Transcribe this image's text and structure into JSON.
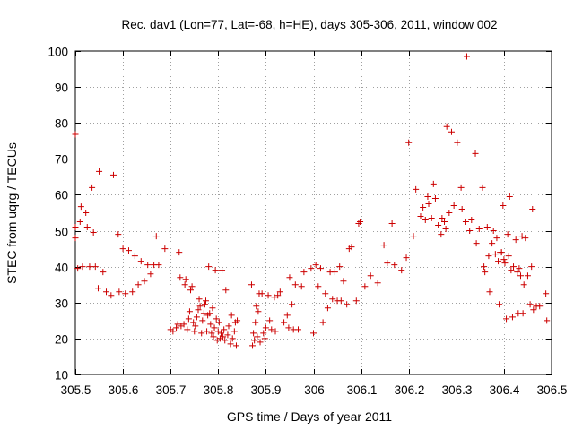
{
  "chart_data": {
    "type": "scatter",
    "title": "Rec. dav1 (Lon=77, Lat=-68, h=HE), days 305-306, 2011, window 002",
    "xlabel": "GPS time / Days of year 2011",
    "ylabel": "STEC from uqrg / TECUs",
    "xlim": [
      305.5,
      306.5
    ],
    "ylim": [
      10,
      100
    ],
    "xticks": [
      305.5,
      305.6,
      305.7,
      305.8,
      305.9,
      306.0,
      306.1,
      306.2,
      306.3,
      306.4,
      306.5
    ],
    "xtick_labels": [
      "305.5",
      "305.6",
      "305.7",
      "305.8",
      "305.9",
      "306",
      "306.1",
      "306.2",
      "306.3",
      "306.4",
      "306.5"
    ],
    "yticks": [
      10,
      20,
      30,
      40,
      50,
      60,
      70,
      80,
      90,
      100
    ],
    "ytick_labels": [
      "10",
      "20",
      "30",
      "40",
      "50",
      "60",
      "70",
      "80",
      "90",
      "100"
    ],
    "grid": true,
    "marker": "plus",
    "color": "#cc0000",
    "series": [
      {
        "name": "STEC",
        "points": [
          [
            305.5,
            76.8
          ],
          [
            305.5,
            51.0
          ],
          [
            305.5,
            48.0
          ],
          [
            305.505,
            39.5
          ],
          [
            305.51,
            52.5
          ],
          [
            305.512,
            56.7
          ],
          [
            305.515,
            40.0
          ],
          [
            305.522,
            55.0
          ],
          [
            305.525,
            51.0
          ],
          [
            305.53,
            40.0
          ],
          [
            305.535,
            62.0
          ],
          [
            305.538,
            49.5
          ],
          [
            305.542,
            40.0
          ],
          [
            305.548,
            34.0
          ],
          [
            305.55,
            66.5
          ],
          [
            305.558,
            38.5
          ],
          [
            305.565,
            33.0
          ],
          [
            305.575,
            32.0
          ],
          [
            305.58,
            65.5
          ],
          [
            305.59,
            49.0
          ],
          [
            305.592,
            33.0
          ],
          [
            305.6,
            45.0
          ],
          [
            305.605,
            32.5
          ],
          [
            305.612,
            44.5
          ],
          [
            305.62,
            33.0
          ],
          [
            305.625,
            43.0
          ],
          [
            305.632,
            35.0
          ],
          [
            305.638,
            41.5
          ],
          [
            305.645,
            36.0
          ],
          [
            305.652,
            40.5
          ],
          [
            305.658,
            38.0
          ],
          [
            305.665,
            40.5
          ],
          [
            305.67,
            48.5
          ],
          [
            305.675,
            40.5
          ],
          [
            305.688,
            45.0
          ],
          [
            305.7,
            22.5
          ],
          [
            305.705,
            22.0
          ],
          [
            305.712,
            23.0
          ],
          [
            305.715,
            24.0
          ],
          [
            305.718,
            44.0
          ],
          [
            305.72,
            37.0
          ],
          [
            305.722,
            23.5
          ],
          [
            305.728,
            24.0
          ],
          [
            305.73,
            35.0
          ],
          [
            305.732,
            36.5
          ],
          [
            305.735,
            22.5
          ],
          [
            305.738,
            25.5
          ],
          [
            305.74,
            27.5
          ],
          [
            305.742,
            33.5
          ],
          [
            305.745,
            34.5
          ],
          [
            305.748,
            24.5
          ],
          [
            305.75,
            22.0
          ],
          [
            305.752,
            23.5
          ],
          [
            305.755,
            26.0
          ],
          [
            305.758,
            28.0
          ],
          [
            305.76,
            31.0
          ],
          [
            305.762,
            29.0
          ],
          [
            305.765,
            21.5
          ],
          [
            305.767,
            25.0
          ],
          [
            305.77,
            27.0
          ],
          [
            305.772,
            29.5
          ],
          [
            305.774,
            30.5
          ],
          [
            305.776,
            22.0
          ],
          [
            305.778,
            26.5
          ],
          [
            305.78,
            40.0
          ],
          [
            305.782,
            27.0
          ],
          [
            305.784,
            24.0
          ],
          [
            305.786,
            21.5
          ],
          [
            305.788,
            28.5
          ],
          [
            305.79,
            20.5
          ],
          [
            305.792,
            23.0
          ],
          [
            305.794,
            39.0
          ],
          [
            305.796,
            25.5
          ],
          [
            305.798,
            19.5
          ],
          [
            305.8,
            22.0
          ],
          [
            305.802,
            24.5
          ],
          [
            305.804,
            20.0
          ],
          [
            305.806,
            21.5
          ],
          [
            305.808,
            39.0
          ],
          [
            305.81,
            20.5
          ],
          [
            305.812,
            22.5
          ],
          [
            305.814,
            19.5
          ],
          [
            305.816,
            33.5
          ],
          [
            305.82,
            21.0
          ],
          [
            305.822,
            23.5
          ],
          [
            305.826,
            18.5
          ],
          [
            305.828,
            26.5
          ],
          [
            305.83,
            20.0
          ],
          [
            305.834,
            22.0
          ],
          [
            305.836,
            24.5
          ],
          [
            305.838,
            18.0
          ],
          [
            305.84,
            25.0
          ],
          [
            305.87,
            35.0
          ],
          [
            305.872,
            18.0
          ],
          [
            305.874,
            21.5
          ],
          [
            305.876,
            19.5
          ],
          [
            305.878,
            24.5
          ],
          [
            305.88,
            29.0
          ],
          [
            305.882,
            20.5
          ],
          [
            305.884,
            27.5
          ],
          [
            305.886,
            32.5
          ],
          [
            305.888,
            19.0
          ],
          [
            305.892,
            32.5
          ],
          [
            305.895,
            21.5
          ],
          [
            305.898,
            20.0
          ],
          [
            305.9,
            23.0
          ],
          [
            305.905,
            32.0
          ],
          [
            305.908,
            25.0
          ],
          [
            305.912,
            22.5
          ],
          [
            305.918,
            31.5
          ],
          [
            305.92,
            22.0
          ],
          [
            305.925,
            32.0
          ],
          [
            305.93,
            33.0
          ],
          [
            305.938,
            24.5
          ],
          [
            305.945,
            26.5
          ],
          [
            305.948,
            23.0
          ],
          [
            305.95,
            37.0
          ],
          [
            305.955,
            29.5
          ],
          [
            305.958,
            22.5
          ],
          [
            305.962,
            35.0
          ],
          [
            305.968,
            22.5
          ],
          [
            305.975,
            34.5
          ],
          [
            305.98,
            38.5
          ],
          [
            305.995,
            39.5
          ],
          [
            306.0,
            21.5
          ],
          [
            306.005,
            40.5
          ],
          [
            306.01,
            34.5
          ],
          [
            306.015,
            39.5
          ],
          [
            306.02,
            24.5
          ],
          [
            306.025,
            32.5
          ],
          [
            306.03,
            28.5
          ],
          [
            306.035,
            38.5
          ],
          [
            306.04,
            31.0
          ],
          [
            306.045,
            38.5
          ],
          [
            306.05,
            30.5
          ],
          [
            306.055,
            40.0
          ],
          [
            306.058,
            30.5
          ],
          [
            306.063,
            36.0
          ],
          [
            306.07,
            29.5
          ],
          [
            306.075,
            45.0
          ],
          [
            306.08,
            45.5
          ],
          [
            306.09,
            30.5
          ],
          [
            306.095,
            52.0
          ],
          [
            306.098,
            52.5
          ],
          [
            306.108,
            34.5
          ],
          [
            306.12,
            37.5
          ],
          [
            306.135,
            35.5
          ],
          [
            306.148,
            46.0
          ],
          [
            306.155,
            41.0
          ],
          [
            306.165,
            52.0
          ],
          [
            306.17,
            40.5
          ],
          [
            306.185,
            39.0
          ],
          [
            306.195,
            42.5
          ],
          [
            306.2,
            74.5
          ],
          [
            306.21,
            48.5
          ],
          [
            306.215,
            61.5
          ],
          [
            306.225,
            54.0
          ],
          [
            306.23,
            56.5
          ],
          [
            306.235,
            53.0
          ],
          [
            306.24,
            59.5
          ],
          [
            306.242,
            57.5
          ],
          [
            306.248,
            53.5
          ],
          [
            306.252,
            63.0
          ],
          [
            306.256,
            59.0
          ],
          [
            306.262,
            51.5
          ],
          [
            306.268,
            49.0
          ],
          [
            306.27,
            53.5
          ],
          [
            306.275,
            52.5
          ],
          [
            306.278,
            50.5
          ],
          [
            306.28,
            79.0
          ],
          [
            306.285,
            55.0
          ],
          [
            306.29,
            77.5
          ],
          [
            306.295,
            57.0
          ],
          [
            306.302,
            74.5
          ],
          [
            306.31,
            62.0
          ],
          [
            306.312,
            56.0
          ],
          [
            306.32,
            52.5
          ],
          [
            306.322,
            98.5
          ],
          [
            306.328,
            50.0
          ],
          [
            306.332,
            53.0
          ],
          [
            306.34,
            71.5
          ],
          [
            306.342,
            46.5
          ],
          [
            306.348,
            50.5
          ],
          [
            306.355,
            62.0
          ],
          [
            306.358,
            40.0
          ],
          [
            306.36,
            38.5
          ],
          [
            306.365,
            51.0
          ],
          [
            306.368,
            43.0
          ],
          [
            306.37,
            33.0
          ],
          [
            306.375,
            46.5
          ],
          [
            306.378,
            50.0
          ],
          [
            306.382,
            43.5
          ],
          [
            306.385,
            48.0
          ],
          [
            306.388,
            41.5
          ],
          [
            306.39,
            29.5
          ],
          [
            306.392,
            44.0
          ],
          [
            306.395,
            44.0
          ],
          [
            306.398,
            57.0
          ],
          [
            306.4,
            42.0
          ],
          [
            306.402,
            41.0
          ],
          [
            306.405,
            25.5
          ],
          [
            306.408,
            49.0
          ],
          [
            306.41,
            43.0
          ],
          [
            306.412,
            59.5
          ],
          [
            306.415,
            39.0
          ],
          [
            306.418,
            26.0
          ],
          [
            306.42,
            40.0
          ],
          [
            306.425,
            47.5
          ],
          [
            306.428,
            38.5
          ],
          [
            306.43,
            27.0
          ],
          [
            306.432,
            39.5
          ],
          [
            306.435,
            37.5
          ],
          [
            306.438,
            48.5
          ],
          [
            306.44,
            27.0
          ],
          [
            306.442,
            35.0
          ],
          [
            306.445,
            48.0
          ],
          [
            306.45,
            37.5
          ],
          [
            306.455,
            29.5
          ],
          [
            306.458,
            40.0
          ],
          [
            306.46,
            56.0
          ],
          [
            306.462,
            28.0
          ],
          [
            306.468,
            29.0
          ],
          [
            306.475,
            29.0
          ],
          [
            306.488,
            32.5
          ],
          [
            306.49,
            25.0
          ]
        ]
      }
    ]
  }
}
